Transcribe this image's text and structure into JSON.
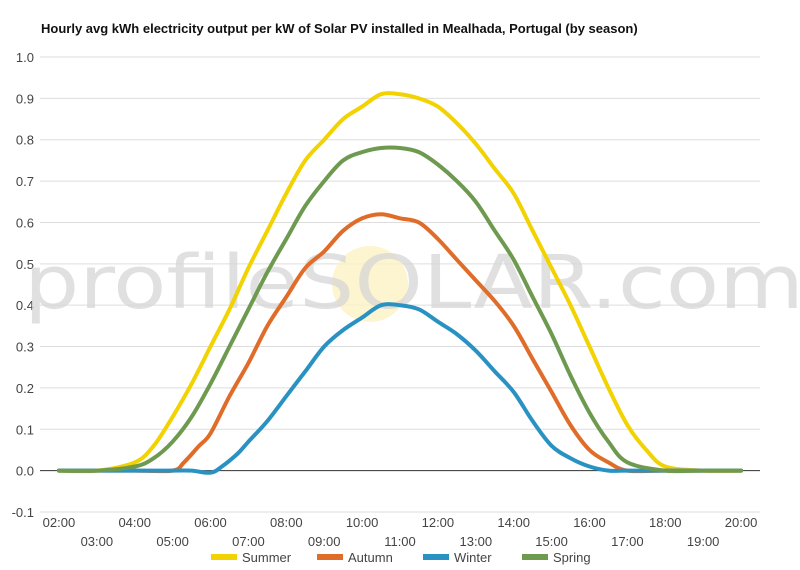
{
  "chart_data": {
    "type": "line",
    "title": "Hourly avg kWh electricity output per kW of Solar PV installed in Mealhada, Portugal (by season)",
    "watermark": "profileSOLAR.com",
    "ylim": [
      -0.1,
      1.0
    ],
    "yticks": [
      "1.0",
      "0.9",
      "0.8",
      "0.7",
      "0.6",
      "0.5",
      "0.4",
      "0.3",
      "0.2",
      "0.1",
      "0.0",
      "-0.1"
    ],
    "ytick_values": [
      1.0,
      0.9,
      0.8,
      0.7,
      0.6,
      0.5,
      0.4,
      0.3,
      0.2,
      0.1,
      0.0,
      -0.1
    ],
    "x_range": [
      1.5,
      20.5
    ],
    "x": [
      2,
      3,
      4,
      5,
      6,
      7,
      8,
      9,
      10,
      11,
      12,
      13,
      14,
      15,
      16,
      17,
      18,
      19,
      20
    ],
    "xticks": [
      "02:00",
      "03:00",
      "04:00",
      "05:00",
      "06:00",
      "07:00",
      "08:00",
      "09:00",
      "10:00",
      "11:00",
      "12:00",
      "13:00",
      "14:00",
      "15:00",
      "16:00",
      "17:00",
      "18:00",
      "19:00",
      "20:00"
    ],
    "legend_position": "bottom",
    "series": [
      {
        "name": "Summer",
        "color": "#f2d200",
        "points": [
          [
            2,
            0
          ],
          [
            3,
            0
          ],
          [
            4,
            0.02
          ],
          [
            4.5,
            0.06
          ],
          [
            5,
            0.13
          ],
          [
            5.5,
            0.21
          ],
          [
            6,
            0.3
          ],
          [
            6.5,
            0.39
          ],
          [
            7,
            0.49
          ],
          [
            7.5,
            0.58
          ],
          [
            8,
            0.67
          ],
          [
            8.5,
            0.75
          ],
          [
            9,
            0.8
          ],
          [
            9.5,
            0.85
          ],
          [
            10,
            0.88
          ],
          [
            10.5,
            0.91
          ],
          [
            11,
            0.91
          ],
          [
            11.5,
            0.9
          ],
          [
            12,
            0.88
          ],
          [
            12.5,
            0.84
          ],
          [
            13,
            0.79
          ],
          [
            13.5,
            0.73
          ],
          [
            14,
            0.67
          ],
          [
            14.5,
            0.58
          ],
          [
            15,
            0.49
          ],
          [
            15.5,
            0.4
          ],
          [
            16,
            0.3
          ],
          [
            16.5,
            0.2
          ],
          [
            17,
            0.11
          ],
          [
            17.5,
            0.05
          ],
          [
            18,
            0.01
          ],
          [
            19,
            0
          ],
          [
            20,
            0
          ]
        ]
      },
      {
        "name": "Autumn",
        "color": "#e06c2a",
        "points": [
          [
            2,
            0
          ],
          [
            3,
            0
          ],
          [
            4,
            0
          ],
          [
            5,
            0
          ],
          [
            5.3,
            0.02
          ],
          [
            5.7,
            0.06
          ],
          [
            6,
            0.09
          ],
          [
            6.5,
            0.18
          ],
          [
            7,
            0.26
          ],
          [
            7.5,
            0.35
          ],
          [
            8,
            0.42
          ],
          [
            8.5,
            0.49
          ],
          [
            9,
            0.53
          ],
          [
            9.5,
            0.58
          ],
          [
            10,
            0.61
          ],
          [
            10.5,
            0.62
          ],
          [
            11,
            0.61
          ],
          [
            11.5,
            0.6
          ],
          [
            12,
            0.56
          ],
          [
            12.5,
            0.51
          ],
          [
            13,
            0.46
          ],
          [
            13.5,
            0.41
          ],
          [
            14,
            0.35
          ],
          [
            14.5,
            0.27
          ],
          [
            15,
            0.19
          ],
          [
            15.5,
            0.11
          ],
          [
            16,
            0.05
          ],
          [
            16.5,
            0.02
          ],
          [
            17,
            0
          ],
          [
            18,
            0
          ],
          [
            19,
            0
          ],
          [
            20,
            0
          ]
        ]
      },
      {
        "name": "Winter",
        "color": "#2a92c2",
        "points": [
          [
            2,
            0
          ],
          [
            3,
            0
          ],
          [
            4,
            0
          ],
          [
            5,
            0
          ],
          [
            5.5,
            0
          ],
          [
            6,
            -0.005
          ],
          [
            6.3,
            0.01
          ],
          [
            6.7,
            0.04
          ],
          [
            7,
            0.07
          ],
          [
            7.5,
            0.12
          ],
          [
            8,
            0.18
          ],
          [
            8.5,
            0.24
          ],
          [
            9,
            0.3
          ],
          [
            9.5,
            0.34
          ],
          [
            10,
            0.37
          ],
          [
            10.5,
            0.4
          ],
          [
            11,
            0.4
          ],
          [
            11.5,
            0.39
          ],
          [
            12,
            0.36
          ],
          [
            12.5,
            0.33
          ],
          [
            13,
            0.29
          ],
          [
            13.5,
            0.24
          ],
          [
            14,
            0.19
          ],
          [
            14.5,
            0.12
          ],
          [
            15,
            0.06
          ],
          [
            15.5,
            0.03
          ],
          [
            16,
            0.01
          ],
          [
            16.5,
            0
          ],
          [
            17,
            0
          ],
          [
            18,
            0
          ],
          [
            19,
            0
          ],
          [
            20,
            0
          ]
        ]
      },
      {
        "name": "Spring",
        "color": "#6e9a50",
        "points": [
          [
            2,
            0
          ],
          [
            3,
            0
          ],
          [
            4,
            0.01
          ],
          [
            4.5,
            0.03
          ],
          [
            5,
            0.07
          ],
          [
            5.5,
            0.13
          ],
          [
            6,
            0.21
          ],
          [
            6.5,
            0.3
          ],
          [
            7,
            0.39
          ],
          [
            7.5,
            0.48
          ],
          [
            8,
            0.56
          ],
          [
            8.5,
            0.64
          ],
          [
            9,
            0.7
          ],
          [
            9.5,
            0.75
          ],
          [
            10,
            0.77
          ],
          [
            10.5,
            0.78
          ],
          [
            11,
            0.78
          ],
          [
            11.5,
            0.77
          ],
          [
            12,
            0.74
          ],
          [
            12.5,
            0.7
          ],
          [
            13,
            0.65
          ],
          [
            13.5,
            0.58
          ],
          [
            14,
            0.51
          ],
          [
            14.5,
            0.42
          ],
          [
            15,
            0.33
          ],
          [
            15.5,
            0.23
          ],
          [
            16,
            0.14
          ],
          [
            16.5,
            0.07
          ],
          [
            17,
            0.02
          ],
          [
            18,
            0
          ],
          [
            19,
            0
          ],
          [
            20,
            0
          ]
        ]
      }
    ]
  }
}
